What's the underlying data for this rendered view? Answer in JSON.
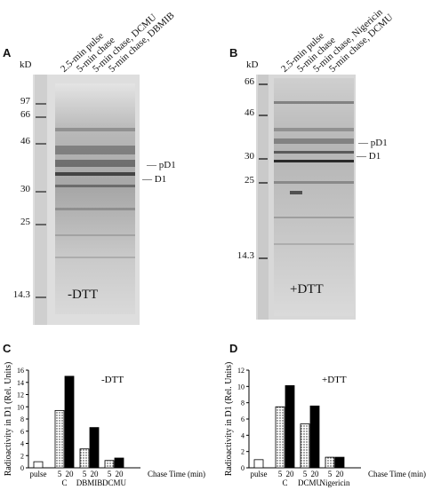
{
  "panelA": {
    "letter": "A",
    "unit": "kD",
    "lanes": [
      "2.5-min pulse",
      "5-min chase",
      "5-min chase, DCMU",
      "5-min chase, DBMIB"
    ],
    "markers": [
      "97",
      "66",
      "46",
      "30",
      "25",
      "14.3"
    ],
    "bands": [
      "pD1",
      "D1"
    ],
    "condition": "-DTT"
  },
  "panelB": {
    "letter": "B",
    "unit": "kD",
    "lanes": [
      "2.5-min pulse",
      "5-min chase",
      "5-min chase, Nigericin",
      "5-min chase, DCMU"
    ],
    "markers": [
      "66",
      "46",
      "30",
      "25",
      "14.3"
    ],
    "bands": [
      "pD1",
      "D1"
    ],
    "condition": "+DTT"
  },
  "panelC": {
    "letter": "C",
    "condition": "-DTT",
    "chase_label": "Chase Time (min)"
  },
  "panelD": {
    "letter": "D",
    "condition": "+DTT",
    "chase_label": "Chase Time (min)"
  },
  "chart_data": [
    {
      "type": "bar",
      "panel": "C",
      "ylabel": "Radioactivity in D1 (Rel. Units)",
      "xlabel": "Chase Time (min)",
      "ylim": [
        0,
        16
      ],
      "yticks": [
        0,
        2,
        4,
        6,
        8,
        10,
        12,
        14,
        16
      ],
      "annotation": "-DTT",
      "groups": [
        {
          "name": "pulse",
          "bars": [
            {
              "time": "",
              "value": 1.0,
              "fill": "white"
            }
          ]
        },
        {
          "name": "C",
          "bars": [
            {
              "time": "5",
              "value": 9.4,
              "fill": "dotted"
            },
            {
              "time": "20",
              "value": 15.0,
              "fill": "black"
            }
          ]
        },
        {
          "name": "DBMIB",
          "bars": [
            {
              "time": "5",
              "value": 3.1,
              "fill": "dotted"
            },
            {
              "time": "20",
              "value": 6.6,
              "fill": "black"
            }
          ]
        },
        {
          "name": "DCMU",
          "bars": [
            {
              "time": "5",
              "value": 1.2,
              "fill": "dotted"
            },
            {
              "time": "20",
              "value": 1.6,
              "fill": "black"
            }
          ]
        }
      ]
    },
    {
      "type": "bar",
      "panel": "D",
      "ylabel": "Radioactivity in D1 (Rel. Units)",
      "xlabel": "Chase Time (min)",
      "ylim": [
        0,
        12
      ],
      "yticks": [
        0,
        2,
        4,
        6,
        8,
        10,
        12
      ],
      "annotation": "+DTT",
      "groups": [
        {
          "name": "pulse",
          "bars": [
            {
              "time": "",
              "value": 1.0,
              "fill": "white"
            }
          ]
        },
        {
          "name": "C",
          "bars": [
            {
              "time": "5",
              "value": 7.5,
              "fill": "dotted"
            },
            {
              "time": "20",
              "value": 10.1,
              "fill": "black"
            }
          ]
        },
        {
          "name": "DCMU",
          "bars": [
            {
              "time": "5",
              "value": 5.4,
              "fill": "dotted"
            },
            {
              "time": "20",
              "value": 7.6,
              "fill": "black"
            }
          ]
        },
        {
          "name": "Nigericin",
          "bars": [
            {
              "time": "5",
              "value": 1.3,
              "fill": "dotted"
            },
            {
              "time": "20",
              "value": 1.3,
              "fill": "black"
            }
          ]
        }
      ]
    }
  ]
}
